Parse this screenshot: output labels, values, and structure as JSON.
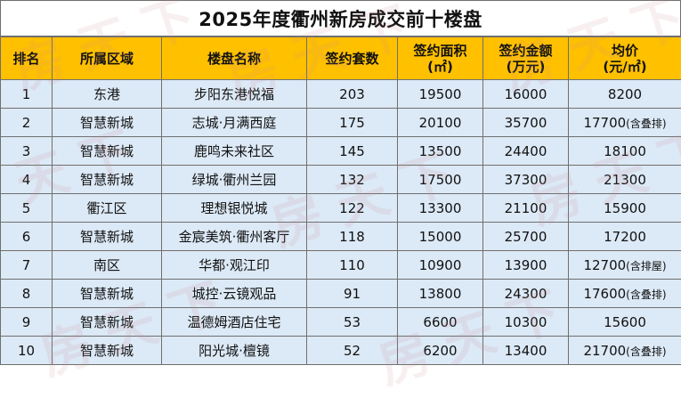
{
  "title": "2025年度衢州新房成交前十楼盘",
  "headers": {
    "rank": "排名",
    "district": "所属区域",
    "project": "楼盘名称",
    "units": "签约套数",
    "area_line1": "签约面积",
    "area_line2": "(㎡)",
    "amount_line1": "签约金额",
    "amount_line2": "(万元)",
    "price_line1": "均价",
    "price_line2": "(元/㎡)"
  },
  "rows": [
    {
      "rank": "1",
      "district": "东港",
      "project": "步阳东港悦福",
      "units": "203",
      "area": "19500",
      "amount": "16000",
      "price": "8200",
      "price_note": ""
    },
    {
      "rank": "2",
      "district": "智慧新城",
      "project": "志城·月满西庭",
      "units": "175",
      "area": "20100",
      "amount": "35700",
      "price": "17700",
      "price_note": "(含叠排)"
    },
    {
      "rank": "3",
      "district": "智慧新城",
      "project": "鹿鸣未来社区",
      "units": "145",
      "area": "13500",
      "amount": "24400",
      "price": "18100",
      "price_note": ""
    },
    {
      "rank": "4",
      "district": "智慧新城",
      "project": "绿城·衢州兰园",
      "units": "132",
      "area": "17500",
      "amount": "37300",
      "price": "21300",
      "price_note": ""
    },
    {
      "rank": "5",
      "district": "衢江区",
      "project": "理想银悦城",
      "units": "122",
      "area": "13300",
      "amount": "21100",
      "price": "15900",
      "price_note": ""
    },
    {
      "rank": "6",
      "district": "智慧新城",
      "project": "金宸美筑·衢州客厅",
      "units": "118",
      "area": "15000",
      "amount": "25700",
      "price": "17200",
      "price_note": ""
    },
    {
      "rank": "7",
      "district": "南区",
      "project": "华都·观江印",
      "units": "110",
      "area": "10900",
      "amount": "13900",
      "price": "12700",
      "price_note": "(含排屋)"
    },
    {
      "rank": "8",
      "district": "智慧新城",
      "project": "城控·云镜观品",
      "units": "91",
      "area": "13800",
      "amount": "24300",
      "price": "17600",
      "price_note": "(含叠排)"
    },
    {
      "rank": "9",
      "district": "智慧新城",
      "project": "温德姆酒店住宅",
      "units": "53",
      "area": "6600",
      "amount": "10300",
      "price": "15600",
      "price_note": ""
    },
    {
      "rank": "10",
      "district": "智慧新城",
      "project": "阳光城·檀镜",
      "units": "52",
      "area": "6200",
      "amount": "13400",
      "price": "21700",
      "price_note": "(含叠排)"
    }
  ],
  "watermark": "房天下",
  "colors": {
    "header_bg": "#ffc000",
    "row_bg": "#dce9f6",
    "border": "#6f6f6f"
  }
}
